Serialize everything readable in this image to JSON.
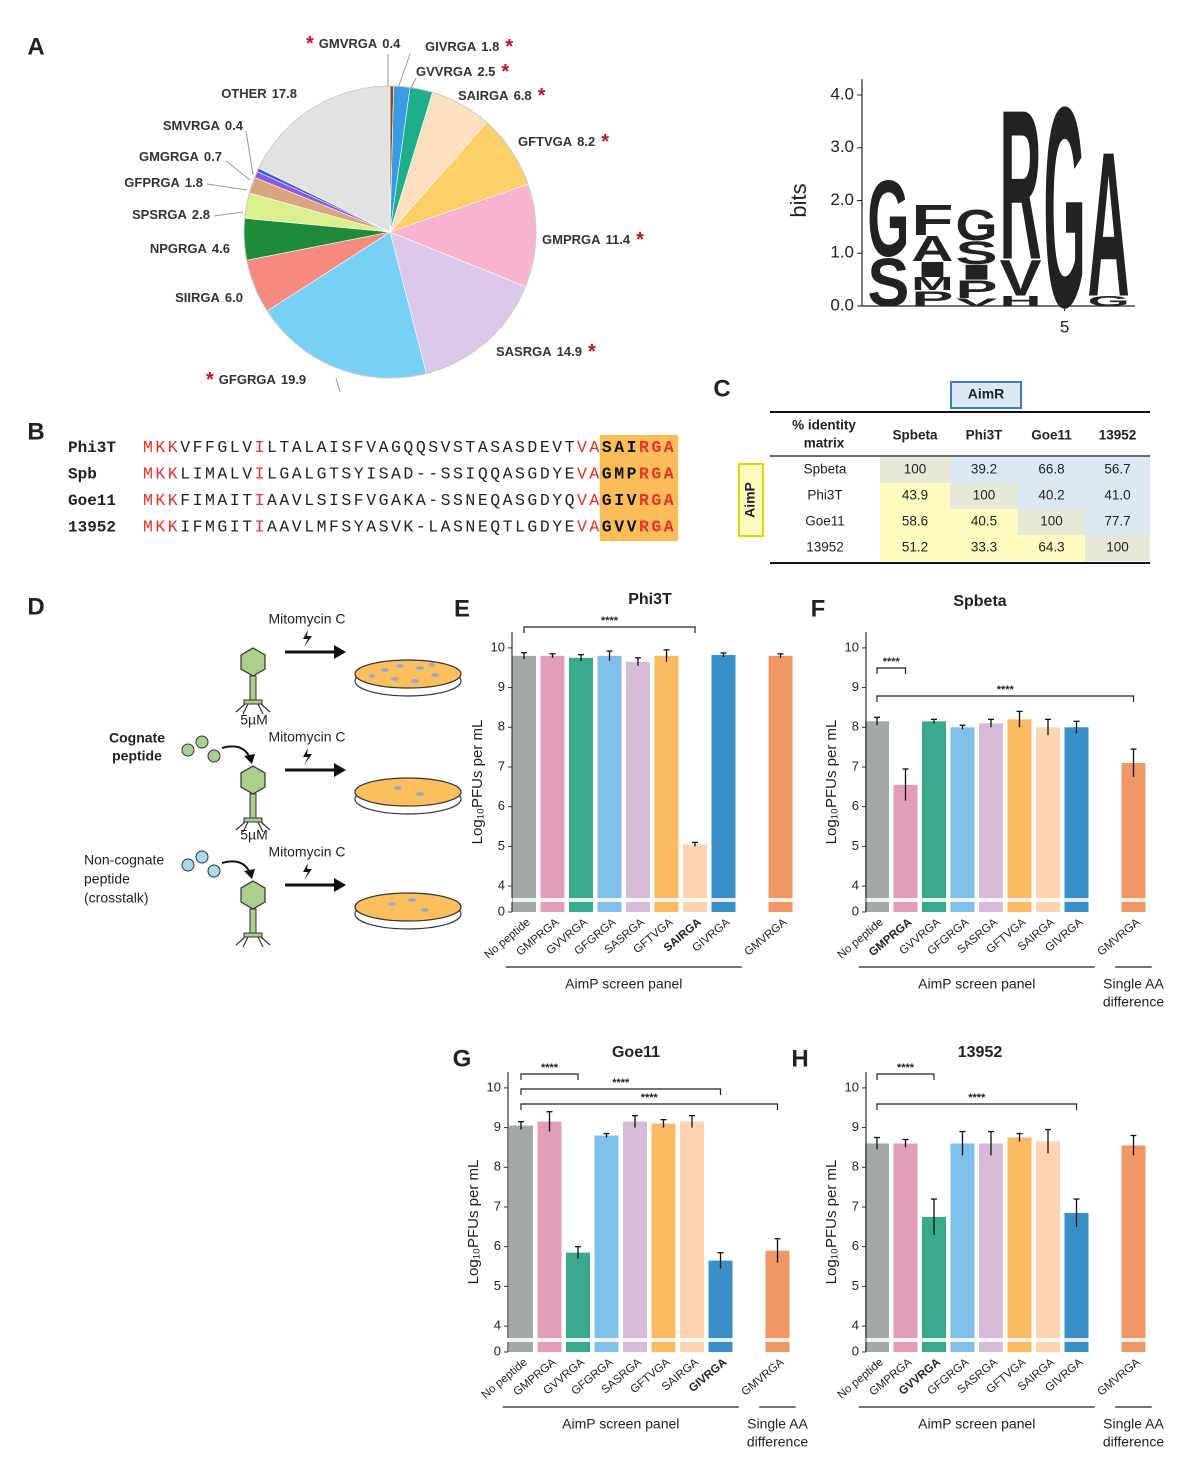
{
  "panel_labels": [
    "A",
    "B",
    "C",
    "D",
    "E",
    "F",
    "G",
    "H"
  ],
  "chart_data": [
    {
      "type": "pie",
      "categories": [
        "GMVRGA",
        "GIVRGA",
        "GVVRGA",
        "SAIRGA",
        "GFTVGA",
        "GMPRGA",
        "SASRGA",
        "GFGRGA",
        "SIIRGA",
        "NPGRGA",
        "SPSRGA",
        "GFPRGA",
        "GMGRGA",
        "SMVRGA",
        "OTHER"
      ],
      "values": [
        0.4,
        1.8,
        2.5,
        6.8,
        8.2,
        11.4,
        14.9,
        19.9,
        6.0,
        4.6,
        2.8,
        1.8,
        0.7,
        0.4,
        17.8
      ],
      "value_labels": [
        "0.4",
        "1.8",
        "2.5",
        "6.8",
        "8.2",
        "11.4",
        "14.9",
        "19.9",
        "6.0",
        "4.6",
        "2.8",
        "1.8",
        "0.7",
        "0.4",
        "17.8"
      ],
      "colors": [
        "#8b4a16",
        "#3a9be0",
        "#1fae8a",
        "#fde0c0",
        "#fdd06a",
        "#f7b3cf",
        "#dcc8ea",
        "#78d0f5",
        "#f48a80",
        "#1e8a3a",
        "#dbef8e",
        "#d9a57e",
        "#8a5adb",
        "#3a5ee0",
        "#e2e2e2"
      ],
      "highlight_symbol": "*",
      "highlight_color": "#c0141a",
      "highlighted": [
        true,
        true,
        true,
        true,
        true,
        true,
        true,
        true,
        false,
        false,
        false,
        false,
        false,
        false,
        false
      ]
    },
    {
      "type": "logo",
      "ylabel": "bits",
      "ylim": [
        0,
        4.3
      ],
      "yticks": [
        {
          "value": 0,
          "label": "0.0"
        },
        {
          "value": 1,
          "label": "1.0"
        },
        {
          "value": 2,
          "label": "2.0"
        },
        {
          "value": 3,
          "label": "3.0"
        },
        {
          "value": 4,
          "label": "4.0"
        }
      ],
      "xlim": [
        0.4,
        6.6
      ],
      "xticks": [
        5
      ],
      "letter_colors": {
        "G": "#1f9e1f",
        "S": "#1f9e1f",
        "R": "#1c1ca8",
        "H": "#1c1ca8",
        "A": "#111111",
        "F": "#111111",
        "I": "#111111",
        "M": "#111111",
        "P": "#111111",
        "V": "#111111",
        "L": "#111111"
      },
      "positions": [
        {
          "letters": [
            "S",
            "G"
          ],
          "heights": [
            0.95,
            1.5
          ]
        },
        {
          "letters": [
            "P",
            "M",
            "I",
            "A",
            "F"
          ],
          "heights": [
            0.3,
            0.25,
            0.3,
            0.5,
            0.6
          ]
        },
        {
          "letters": [
            "V",
            "P",
            "I",
            "S",
            "G"
          ],
          "heights": [
            0.15,
            0.35,
            0.3,
            0.45,
            0.6
          ]
        },
        {
          "letters": [
            "H",
            "V",
            "R"
          ],
          "heights": [
            0.2,
            0.7,
            2.95
          ]
        },
        {
          "letters": [
            "G"
          ],
          "heights": [
            3.95
          ]
        },
        {
          "letters": [
            "G",
            "A"
          ],
          "heights": [
            0.2,
            2.85
          ]
        }
      ]
    },
    {
      "type": "bar",
      "title": "Phi3T",
      "ylabel": "Log₁₀PFUs per mL",
      "categories": [
        "No peptide",
        "GMPRGA",
        "GVVRGA",
        "GFGRGA",
        "SASRGA",
        "GFTVGA",
        "SAIRGA",
        "GIVRGA",
        null,
        "GMVRGA"
      ],
      "values": [
        9.8,
        9.8,
        9.75,
        9.8,
        9.65,
        9.8,
        5.05,
        9.82,
        null,
        9.8
      ],
      "errors": [
        0.08,
        0.05,
        0.08,
        0.12,
        0.1,
        0.15,
        0.05,
        0.05,
        null,
        0.05
      ],
      "colors": [
        "#a3a8a8",
        "#e09ebb",
        "#3aa88a",
        "#7fbfe8",
        "#d7bcd9",
        "#fdb863",
        "#fdd5b5",
        "#3a8fc6",
        null,
        "#ef9866"
      ],
      "highlighted": "SAIRGA",
      "highlight_color": "#e8302a",
      "ylim": [
        0,
        10.4
      ],
      "ybreak": [
        0.3,
        3.7
      ],
      "yticks": [
        0,
        4,
        5,
        6,
        7,
        8,
        9,
        10
      ],
      "significance": [
        {
          "between": [
            "No peptide",
            "SAIRGA"
          ],
          "label": "****"
        }
      ],
      "groups": [
        {
          "lines": [
            "AimP screen panel"
          ],
          "span": [
            "No peptide",
            "GIVRGA"
          ]
        }
      ]
    },
    {
      "type": "bar",
      "title": "Spbeta",
      "ylabel": "Log₁₀PFUs per mL",
      "categories": [
        "No peptide",
        "GMPRGA",
        "GVVRGA",
        "GFGRGA",
        "SASRGA",
        "GFTVGA",
        "SAIRGA",
        "GIVRGA",
        null,
        "GMVRGA"
      ],
      "values": [
        8.15,
        6.55,
        8.15,
        8.0,
        8.1,
        8.2,
        8.0,
        8.0,
        null,
        7.1
      ],
      "errors": [
        0.1,
        0.4,
        0.05,
        0.05,
        0.1,
        0.2,
        0.2,
        0.15,
        null,
        0.35
      ],
      "colors": [
        "#a3a8a8",
        "#e09ebb",
        "#3aa88a",
        "#7fbfe8",
        "#d7bcd9",
        "#fdb863",
        "#fdd5b5",
        "#3a8fc6",
        null,
        "#ef9866"
      ],
      "highlighted": "GMPRGA",
      "highlight_color": "#e8302a",
      "ylim": [
        0,
        10.4
      ],
      "ybreak": [
        0.3,
        3.7
      ],
      "yticks": [
        0,
        4,
        5,
        6,
        7,
        8,
        9,
        10
      ],
      "significance": [
        {
          "between": [
            "No peptide",
            "GMPRGA"
          ],
          "label": "****"
        },
        {
          "between": [
            "No peptide",
            "GMVRGA"
          ],
          "label": "****"
        }
      ],
      "groups": [
        {
          "lines": [
            "AimP screen panel"
          ],
          "span": [
            "No peptide",
            "GIVRGA"
          ]
        },
        {
          "lines": [
            "Single AA",
            "difference"
          ],
          "span": [
            "GMVRGA",
            "GMVRGA"
          ]
        }
      ]
    },
    {
      "type": "bar",
      "title": "Goe11",
      "ylabel": "Log₁₀PFUs per mL",
      "categories": [
        "No peptide",
        "GMPRGA",
        "GVVRGA",
        "GFGRGA",
        "SASRGA",
        "GFTVGA",
        "SAIRGA",
        "GIVRGA",
        null,
        "GMVRGA"
      ],
      "values": [
        9.05,
        9.15,
        5.85,
        8.8,
        9.15,
        9.1,
        9.15,
        5.65,
        null,
        5.9
      ],
      "errors": [
        0.1,
        0.25,
        0.15,
        0.05,
        0.15,
        0.1,
        0.15,
        0.2,
        null,
        0.3
      ],
      "colors": [
        "#a3a8a8",
        "#e09ebb",
        "#3aa88a",
        "#7fbfe8",
        "#d7bcd9",
        "#fdb863",
        "#fdd5b5",
        "#3a8fc6",
        null,
        "#ef9866"
      ],
      "highlighted": "GIVRGA",
      "highlight_color": "#e8302a",
      "ylim": [
        0,
        10.4
      ],
      "ybreak": [
        0.3,
        3.7
      ],
      "yticks": [
        0,
        4,
        5,
        6,
        7,
        8,
        9,
        10
      ],
      "significance": [
        {
          "between": [
            "No peptide",
            "GVVRGA"
          ],
          "label": "****"
        },
        {
          "between": [
            "No peptide",
            "GIVRGA"
          ],
          "label": "****"
        },
        {
          "between": [
            "No peptide",
            "GMVRGA"
          ],
          "label": "****"
        }
      ],
      "groups": [
        {
          "lines": [
            "AimP screen panel"
          ],
          "span": [
            "No peptide",
            "GIVRGA"
          ]
        },
        {
          "lines": [
            "Single AA",
            "difference"
          ],
          "span": [
            "GMVRGA",
            "GMVRGA"
          ]
        }
      ]
    },
    {
      "type": "bar",
      "title": "13952",
      "ylabel": "Log₁₀PFUs per mL",
      "categories": [
        "No peptide",
        "GMPRGA",
        "GVVRGA",
        "GFGRGA",
        "SASRGA",
        "GFTVGA",
        "SAIRGA",
        "GIVRGA",
        null,
        "GMVRGA"
      ],
      "values": [
        8.6,
        8.6,
        6.75,
        8.6,
        8.6,
        8.75,
        8.65,
        6.85,
        null,
        8.55
      ],
      "errors": [
        0.15,
        0.1,
        0.45,
        0.3,
        0.3,
        0.1,
        0.3,
        0.35,
        null,
        0.25
      ],
      "colors": [
        "#a3a8a8",
        "#e09ebb",
        "#3aa88a",
        "#7fbfe8",
        "#d7bcd9",
        "#fdb863",
        "#fdd5b5",
        "#3a8fc6",
        null,
        "#ef9866"
      ],
      "highlighted": "GVVRGA",
      "highlight_color": "#e8302a",
      "ylim": [
        0,
        10.4
      ],
      "ybreak": [
        0.3,
        3.7
      ],
      "yticks": [
        0,
        4,
        5,
        6,
        7,
        8,
        9,
        10
      ],
      "significance": [
        {
          "between": [
            "No peptide",
            "GVVRGA"
          ],
          "label": "****"
        },
        {
          "between": [
            "No peptide",
            "GIVRGA"
          ],
          "label": "****"
        }
      ],
      "groups": [
        {
          "lines": [
            "AimP screen panel"
          ],
          "span": [
            "No peptide",
            "GIVRGA"
          ]
        },
        {
          "lines": [
            "Single AA",
            "difference"
          ],
          "span": [
            "GMVRGA",
            "GMVRGA"
          ]
        }
      ]
    }
  ],
  "alignment": {
    "rows": [
      {
        "name": "Phi3T",
        "segments": [
          "MKK",
          "VFFGLV",
          "I",
          "LTALAISFVAGQQSVSTASASDEVT",
          "VA",
          "SAI",
          "RGA"
        ]
      },
      {
        "name": "Spb",
        "segments": [
          "MKK",
          "LIMALV",
          "I",
          "LGALGTSYISAD--SSIQQASGDYE",
          "VA",
          "GMP",
          "RGA"
        ]
      },
      {
        "name": "Goe11",
        "segments": [
          "MKK",
          "FIMAIT",
          "I",
          "AAVLSISFVGAKA-SSNEQASGDYQ",
          "VA",
          "GIV",
          "RGA"
        ]
      },
      {
        "name": "13952",
        "segments": [
          "MKK",
          "IFMGIT",
          "I",
          "AAVLMFSYASVK-LASNEQTLGDYE",
          "VA",
          "GVV",
          "RGA"
        ]
      }
    ]
  },
  "identity_table": {
    "title": "AimR",
    "row_title": "AimP",
    "corner": [
      "% identity",
      "matrix"
    ],
    "columns": [
      "Spbeta",
      "Phi3T",
      "Goe11",
      "13952"
    ],
    "rows": [
      {
        "name": "Spbeta",
        "cells": [
          "100",
          "39.2",
          "66.8",
          "56.7"
        ]
      },
      {
        "name": "Phi3T",
        "cells": [
          "43.9",
          "100",
          "40.2",
          "41.0"
        ]
      },
      {
        "name": "Goe11",
        "cells": [
          "58.6",
          "40.5",
          "100",
          "77.7"
        ]
      },
      {
        "name": "13952",
        "cells": [
          "51.2",
          "33.3",
          "64.3",
          "100"
        ]
      }
    ]
  },
  "diagram": {
    "steps": [
      {
        "agent": "Mitomycin C"
      },
      {
        "peptide": [
          "Cognate",
          "peptide"
        ],
        "dose": "5µM",
        "agent": "Mitomycin C"
      },
      {
        "peptide": [
          "Non-cognate",
          "peptide",
          "(crosstalk)"
        ],
        "dose": "5µM",
        "agent": "Mitomycin C"
      }
    ]
  }
}
